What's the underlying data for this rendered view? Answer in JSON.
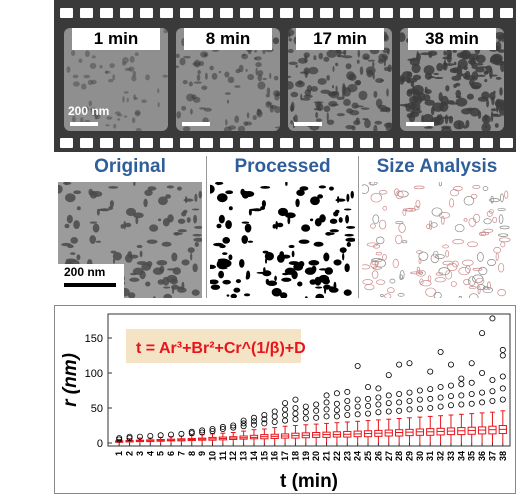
{
  "filmstrip": {
    "frames": [
      {
        "label": "1 min",
        "density": 0.08
      },
      {
        "label": "8 min",
        "density": 0.22
      },
      {
        "label": "17 min",
        "density": 0.38
      },
      {
        "label": "38 min",
        "density": 0.5
      }
    ],
    "scale_label": "200 nm"
  },
  "panels": {
    "original_title": "Original",
    "processed_title": "Processed",
    "size_title": "Size Analysis",
    "scale_label": "200 nm"
  },
  "colors": {
    "title_blue": "#2f5f9a",
    "box_red": "#e8141a",
    "equation_bg": "#f5e3c6",
    "film": "#3a3a3a"
  },
  "chart_data": {
    "type": "box",
    "xlabel": "t (min)",
    "ylabel": "r (nm)",
    "ylim": [
      0,
      180
    ],
    "yticks": [
      0,
      50,
      100,
      150
    ],
    "equation": "t = Ar³+Br²+Cr^(1/β)+D",
    "categories": [
      "1",
      "2",
      "3",
      "4",
      "5",
      "6",
      "7",
      "8",
      "9",
      "10",
      "11",
      "12",
      "13",
      "14",
      "15",
      "16",
      "17",
      "18",
      "19",
      "20",
      "21",
      "22",
      "23",
      "24",
      "25",
      "26",
      "27",
      "28",
      "29",
      "30",
      "31",
      "32",
      "33",
      "34",
      "35",
      "36",
      "37",
      "38"
    ],
    "boxes": [
      {
        "q1": 1,
        "med": 2,
        "q3": 3,
        "hi": 5,
        "out": [
          5,
          7
        ]
      },
      {
        "q1": 1.5,
        "med": 2.5,
        "q3": 3.5,
        "hi": 6,
        "out": [
          7,
          9
        ]
      },
      {
        "q1": 2,
        "med": 3,
        "q3": 4,
        "hi": 7,
        "out": [
          9
        ]
      },
      {
        "q1": 2,
        "med": 3,
        "q3": 4.5,
        "hi": 7,
        "out": [
          10
        ]
      },
      {
        "q1": 2.5,
        "med": 3.5,
        "q3": 5,
        "hi": 8,
        "out": [
          11
        ]
      },
      {
        "q1": 3,
        "med": 4,
        "q3": 5.5,
        "hi": 9,
        "out": [
          12
        ]
      },
      {
        "q1": 3,
        "med": 4.5,
        "q3": 6,
        "hi": 10,
        "out": [
          13
        ]
      },
      {
        "q1": 3.5,
        "med": 5,
        "q3": 6.5,
        "hi": 11,
        "out": [
          14,
          16
        ]
      },
      {
        "q1": 4,
        "med": 5.5,
        "q3": 7,
        "hi": 12,
        "out": [
          15,
          18
        ]
      },
      {
        "q1": 4,
        "med": 6,
        "q3": 8,
        "hi": 13,
        "out": [
          17,
          20
        ]
      },
      {
        "q1": 4.5,
        "med": 6.5,
        "q3": 8.5,
        "hi": 14,
        "out": [
          20,
          23
        ]
      },
      {
        "q1": 5,
        "med": 7,
        "q3": 9,
        "hi": 15,
        "out": [
          22,
          25
        ]
      },
      {
        "q1": 5.5,
        "med": 7.5,
        "q3": 10,
        "hi": 17,
        "out": [
          24,
          28,
          32
        ]
      },
      {
        "q1": 6,
        "med": 8,
        "q3": 11,
        "hi": 19,
        "out": [
          26,
          31,
          36
        ]
      },
      {
        "q1": 6,
        "med": 9,
        "q3": 12,
        "hi": 20,
        "out": [
          28,
          34,
          40
        ]
      },
      {
        "q1": 6.5,
        "med": 9.5,
        "q3": 12.5,
        "hi": 22,
        "out": [
          30,
          38,
          45
        ]
      },
      {
        "q1": 7,
        "med": 10,
        "q3": 13,
        "hi": 24,
        "out": [
          32,
          40,
          48,
          57
        ]
      },
      {
        "q1": 7,
        "med": 10.5,
        "q3": 14,
        "hi": 25,
        "out": [
          34,
          42,
          50,
          62
        ]
      },
      {
        "q1": 7.5,
        "med": 11,
        "q3": 14.5,
        "hi": 26,
        "out": [
          35,
          44,
          52
        ]
      },
      {
        "q1": 8,
        "med": 11.5,
        "q3": 15,
        "hi": 27,
        "out": [
          36,
          46,
          55
        ]
      },
      {
        "q1": 8,
        "med": 12,
        "q3": 15.5,
        "hi": 28,
        "out": [
          38,
          48,
          58,
          68
        ]
      },
      {
        "q1": 8.5,
        "med": 12,
        "q3": 16,
        "hi": 29,
        "out": [
          38,
          47,
          56,
          71
        ]
      },
      {
        "q1": 8.5,
        "med": 12.5,
        "q3": 16.5,
        "hi": 30,
        "out": [
          40,
          50,
          60,
          73
        ]
      },
      {
        "q1": 9,
        "med": 13,
        "q3": 17,
        "hi": 31,
        "out": [
          41,
          52,
          62,
          110
        ]
      },
      {
        "q1": 9,
        "med": 13.5,
        "q3": 17.5,
        "hi": 32,
        "out": [
          42,
          53,
          63,
          80
        ]
      },
      {
        "q1": 9.5,
        "med": 14,
        "q3": 18,
        "hi": 33,
        "out": [
          44,
          55,
          65,
          78
        ]
      },
      {
        "q1": 10,
        "med": 14.5,
        "q3": 18.5,
        "hi": 34,
        "out": [
          45,
          57,
          68,
          97
        ]
      },
      {
        "q1": 10,
        "med": 15,
        "q3": 19,
        "hi": 35,
        "out": [
          46,
          58,
          70,
          112
        ]
      },
      {
        "q1": 10.5,
        "med": 15.5,
        "q3": 19.5,
        "hi": 36,
        "out": [
          48,
          60,
          72,
          114
        ]
      },
      {
        "q1": 11,
        "med": 16,
        "q3": 20,
        "hi": 37,
        "out": [
          49,
          62,
          75
        ]
      },
      {
        "q1": 11,
        "med": 16,
        "q3": 20.5,
        "hi": 38,
        "out": [
          50,
          63,
          77,
          102
        ]
      },
      {
        "q1": 11.5,
        "med": 16.5,
        "q3": 21,
        "hi": 39,
        "out": [
          52,
          65,
          80,
          130
        ]
      },
      {
        "q1": 12,
        "med": 17,
        "q3": 21.5,
        "hi": 40,
        "out": [
          54,
          67,
          82,
          112
        ]
      },
      {
        "q1": 12,
        "med": 17.5,
        "q3": 22,
        "hi": 41,
        "out": [
          55,
          68,
          84,
          92
        ]
      },
      {
        "q1": 12.5,
        "med": 18,
        "q3": 22.5,
        "hi": 42,
        "out": [
          56,
          70,
          86,
          114
        ]
      },
      {
        "q1": 13,
        "med": 18.5,
        "q3": 23,
        "hi": 43,
        "out": [
          58,
          72,
          100,
          157
        ]
      },
      {
        "q1": 13,
        "med": 19,
        "q3": 24,
        "hi": 44,
        "out": [
          60,
          74,
          90,
          178
        ]
      },
      {
        "q1": 13.5,
        "med": 19.5,
        "q3": 25,
        "hi": 46,
        "out": [
          62,
          78,
          95,
          125,
          133
        ]
      }
    ]
  }
}
